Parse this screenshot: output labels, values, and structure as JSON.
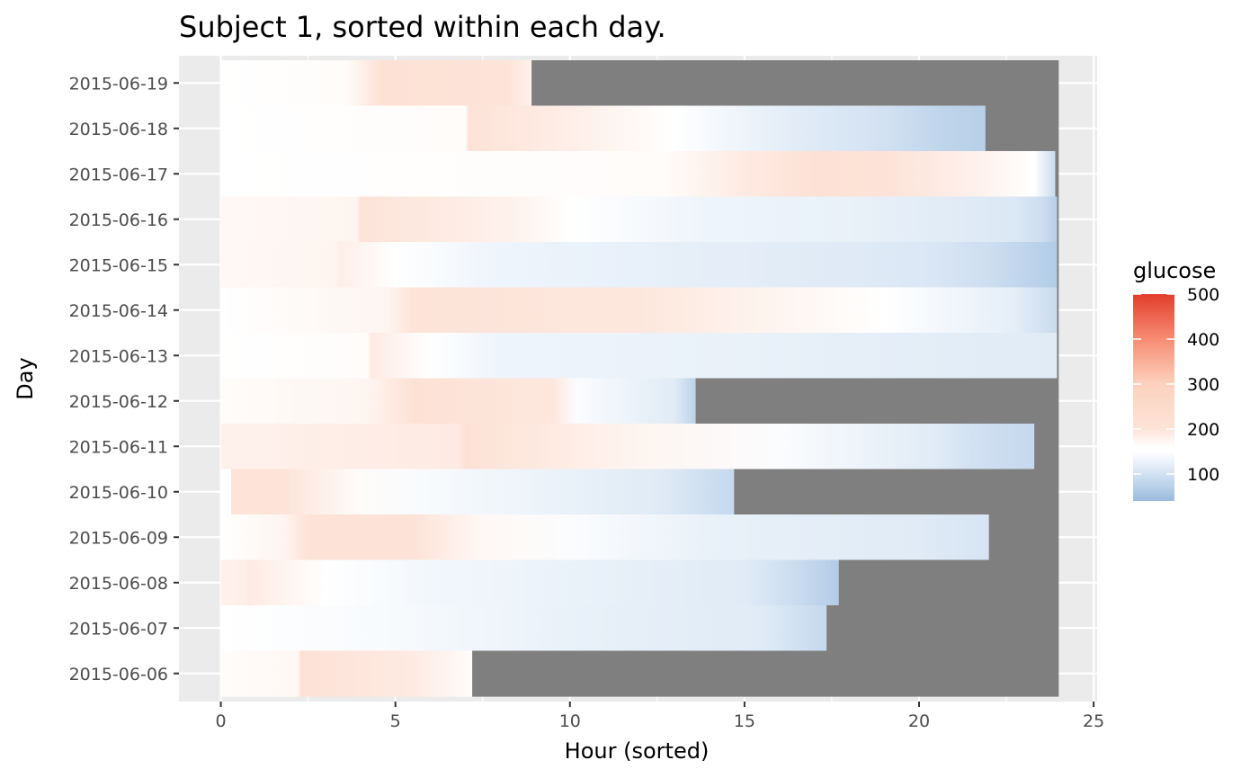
{
  "chart_data": {
    "type": "heatmap",
    "title": "Subject 1, sorted within each day.",
    "xlabel": "Hour (sorted)",
    "ylabel": "Day",
    "xlim": [
      -1.2,
      25.1
    ],
    "x_ticks": [
      0,
      5,
      10,
      15,
      20,
      25
    ],
    "grid": true,
    "missing_color": "#7f7f7f",
    "panel_background": "#ebebeb",
    "legend": {
      "title": "glucose",
      "position": "right",
      "ticks": [
        100,
        200,
        300,
        400,
        500
      ],
      "range": [
        40,
        500
      ],
      "colors": {
        "low": "#9bbcdf",
        "mid_low": "#eef4fb",
        "mid": "#ffffff",
        "mid_high": "#fde3d8",
        "high": "#e23d2c"
      }
    },
    "days": [
      {
        "date": "2015-06-19",
        "start": 0,
        "end": 8.9,
        "stops": [
          [
            0,
            160
          ],
          [
            3.6,
            165
          ],
          [
            4.6,
            210
          ],
          [
            8.2,
            200
          ],
          [
            8.9,
            180
          ]
        ]
      },
      {
        "date": "2015-06-18",
        "start": 0,
        "end": 21.9,
        "stops": [
          [
            0,
            160
          ],
          [
            7.0,
            165
          ],
          [
            7.1,
            205
          ],
          [
            10,
            185
          ],
          [
            13,
            150
          ],
          [
            16,
            120
          ],
          [
            19,
            100
          ],
          [
            20.6,
            80
          ],
          [
            21.9,
            70
          ]
        ]
      },
      {
        "date": "2015-06-17",
        "start": 0,
        "end": 23.9,
        "stops": [
          [
            0,
            160
          ],
          [
            12.7,
            165
          ],
          [
            15,
            190
          ],
          [
            17,
            210
          ],
          [
            19,
            205
          ],
          [
            21.7,
            180
          ],
          [
            23.3,
            155
          ],
          [
            23.9,
            90
          ]
        ]
      },
      {
        "date": "2015-06-16",
        "start": 0,
        "end": 23.95,
        "stops": [
          [
            0,
            170
          ],
          [
            3.9,
            175
          ],
          [
            4.0,
            200
          ],
          [
            8.3,
            180
          ],
          [
            10,
            150
          ],
          [
            14,
            130
          ],
          [
            18,
            125
          ],
          [
            22.7,
            110
          ],
          [
            23.5,
            95
          ],
          [
            23.95,
            70
          ]
        ]
      },
      {
        "date": "2015-06-15",
        "start": 0,
        "end": 23.95,
        "stops": [
          [
            0,
            170
          ],
          [
            3.3,
            175
          ],
          [
            3.4,
            185
          ],
          [
            5,
            150
          ],
          [
            8,
            130
          ],
          [
            14,
            120
          ],
          [
            20,
            110
          ],
          [
            22,
            95
          ],
          [
            23.95,
            65
          ]
        ]
      },
      {
        "date": "2015-06-14",
        "start": 0,
        "end": 23.95,
        "stops": [
          [
            0,
            160
          ],
          [
            4.8,
            175
          ],
          [
            5.5,
            200
          ],
          [
            12,
            195
          ],
          [
            16,
            175
          ],
          [
            19,
            150
          ],
          [
            22.7,
            120
          ],
          [
            23.95,
            90
          ]
        ]
      },
      {
        "date": "2015-06-13",
        "start": 0,
        "end": 23.95,
        "stops": [
          [
            0,
            160
          ],
          [
            4.2,
            165
          ],
          [
            4.3,
            190
          ],
          [
            6,
            150
          ],
          [
            8,
            130
          ],
          [
            15,
            125
          ],
          [
            23.95,
            115
          ]
        ]
      },
      {
        "date": "2015-06-12",
        "start": 0,
        "end": 13.6,
        "stops": [
          [
            0,
            165
          ],
          [
            4.2,
            175
          ],
          [
            5.5,
            210
          ],
          [
            9.5,
            195
          ],
          [
            10.2,
            145
          ],
          [
            13.0,
            115
          ],
          [
            13.6,
            75
          ]
        ]
      },
      {
        "date": "2015-06-11",
        "start": 0,
        "end": 23.3,
        "stops": [
          [
            0,
            180
          ],
          [
            6.8,
            190
          ],
          [
            7.0,
            210
          ],
          [
            12,
            175
          ],
          [
            16,
            145
          ],
          [
            20.5,
            115
          ],
          [
            21.5,
            100
          ],
          [
            23.3,
            85
          ]
        ]
      },
      {
        "date": "2015-06-10",
        "start": 0.3,
        "end": 14.7,
        "stops": [
          [
            0.3,
            200
          ],
          [
            1.8,
            200
          ],
          [
            4,
            165
          ],
          [
            6,
            140
          ],
          [
            10,
            125
          ],
          [
            12.5,
            115
          ],
          [
            14.7,
            85
          ]
        ]
      },
      {
        "date": "2015-06-09",
        "start": 0,
        "end": 22.0,
        "stops": [
          [
            0,
            160
          ],
          [
            1.8,
            175
          ],
          [
            2.5,
            205
          ],
          [
            5.5,
            205
          ],
          [
            7.5,
            170
          ],
          [
            10,
            145
          ],
          [
            14,
            125
          ],
          [
            20,
            115
          ],
          [
            22.0,
            105
          ]
        ]
      },
      {
        "date": "2015-06-08",
        "start": 0,
        "end": 17.7,
        "stops": [
          [
            0,
            180
          ],
          [
            0.7,
            185
          ],
          [
            0.8,
            190
          ],
          [
            3,
            155
          ],
          [
            6,
            135
          ],
          [
            15,
            115
          ],
          [
            16.3,
            95
          ],
          [
            17.7,
            65
          ]
        ]
      },
      {
        "date": "2015-06-07",
        "start": 0,
        "end": 17.35,
        "stops": [
          [
            0,
            155
          ],
          [
            5,
            140
          ],
          [
            10,
            125
          ],
          [
            15.5,
            115
          ],
          [
            17.35,
            85
          ]
        ]
      },
      {
        "date": "2015-06-06",
        "start": 0,
        "end": 7.2,
        "stops": [
          [
            0,
            165
          ],
          [
            2.2,
            170
          ],
          [
            2.3,
            210
          ],
          [
            5.5,
            190
          ],
          [
            7.2,
            165
          ]
        ]
      }
    ]
  }
}
